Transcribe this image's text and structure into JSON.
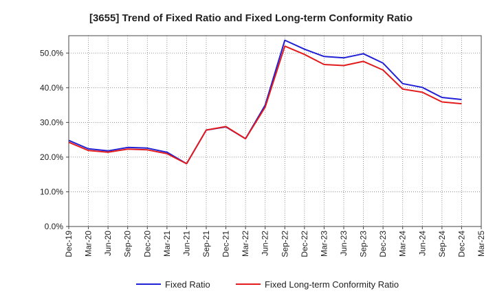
{
  "chart_data": {
    "type": "line",
    "title": "[3655]  Trend of Fixed Ratio and Fixed Long-term Conformity Ratio",
    "xlabel": "",
    "ylabel": "",
    "ylim": [
      0,
      55
    ],
    "y_ticks": [
      "0.0%",
      "10.0%",
      "20.0%",
      "30.0%",
      "40.0%",
      "50.0%"
    ],
    "y_tick_values": [
      0,
      10,
      20,
      30,
      40,
      50
    ],
    "categories": [
      "Dec-19",
      "Mar-20",
      "Jun-20",
      "Sep-20",
      "Dec-20",
      "Mar-21",
      "Jun-21",
      "Sep-21",
      "Dec-21",
      "Mar-22",
      "Jun-22",
      "Sep-22",
      "Dec-22",
      "Mar-23",
      "Jun-23",
      "Sep-23",
      "Dec-23",
      "Mar-24",
      "Jun-24",
      "Sep-24",
      "Dec-24",
      "Mar-25"
    ],
    "grid": true,
    "legend_position": "bottom",
    "series": [
      {
        "name": "Fixed Ratio",
        "color": "#1f1fd6",
        "values": [
          24.8,
          22.4,
          21.8,
          22.8,
          22.6,
          21.4,
          18.1,
          27.8,
          28.7,
          25.3,
          35.0,
          53.7,
          51.1,
          49.0,
          48.6,
          49.8,
          47.1,
          41.2,
          40.1,
          37.2,
          36.6,
          null
        ]
      },
      {
        "name": "Fixed Long-term Conformity Ratio",
        "color": "#e31a1c",
        "values": [
          24.3,
          21.9,
          21.4,
          22.3,
          22.1,
          21.0,
          18.1,
          27.8,
          28.8,
          25.3,
          34.4,
          52.0,
          49.6,
          46.7,
          46.4,
          47.6,
          45.1,
          39.6,
          38.7,
          35.9,
          35.4,
          null
        ]
      }
    ]
  }
}
